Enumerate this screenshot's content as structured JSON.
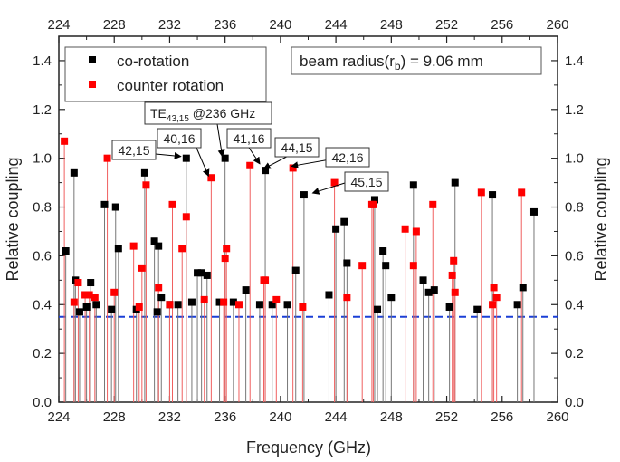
{
  "chart_data": {
    "type": "scatter",
    "xlabel": "Frequency (GHz)",
    "ylabel": "Relative coupling",
    "y2label": "Relative coupling",
    "xlim": [
      224,
      260
    ],
    "ylim": [
      0,
      1.5
    ],
    "xticks": [
      224,
      228,
      232,
      236,
      240,
      244,
      248,
      252,
      256,
      260
    ],
    "yticks": [
      0.0,
      0.2,
      0.4,
      0.6,
      0.8,
      1.0,
      1.2,
      1.4
    ],
    "ytick_labels": [
      "0.0",
      "0.2",
      "0.4",
      "0.6",
      "0.8",
      "1.0",
      "1.2",
      "1.4"
    ],
    "threshold": {
      "value": 0.35,
      "color": "#1a3fd6"
    },
    "legend": {
      "position": "top-left"
    },
    "beam_label": {
      "prefix": "beam radius(r",
      "subscript": "b",
      "suffix": ")  = 9.06 mm"
    },
    "series": [
      {
        "name": "co-rotation",
        "color": "#000000",
        "x": [
          224.5,
          225.1,
          225.2,
          225.5,
          226.0,
          226.3,
          226.7,
          227.3,
          227.8,
          228.1,
          228.3,
          229.6,
          230.2,
          230.9,
          231.1,
          231.2,
          231.4,
          232.0,
          232.6,
          233.2,
          233.6,
          234.0,
          234.3,
          234.7,
          235.6,
          236.0,
          236.6,
          237.5,
          238.5,
          238.9,
          239.4,
          240.5,
          241.1,
          241.7,
          243.5,
          244.0,
          244.6,
          244.8,
          246.8,
          247.0,
          247.4,
          247.6,
          248.0,
          249.6,
          250.3,
          250.7,
          251.1,
          252.2,
          252.6,
          254.2,
          255.3,
          257.1,
          257.5,
          258.3
        ],
        "y": [
          0.62,
          0.94,
          0.5,
          0.37,
          0.39,
          0.49,
          0.4,
          0.81,
          0.38,
          0.8,
          0.63,
          0.38,
          0.94,
          0.66,
          0.37,
          0.64,
          0.43,
          0.4,
          0.4,
          1.0,
          0.41,
          0.53,
          0.53,
          0.52,
          0.41,
          1.0,
          0.41,
          0.46,
          0.4,
          0.95,
          0.4,
          0.4,
          0.54,
          0.85,
          0.44,
          0.71,
          0.74,
          0.57,
          0.83,
          0.38,
          0.62,
          0.56,
          0.43,
          0.89,
          0.5,
          0.45,
          0.46,
          0.39,
          0.9,
          0.38,
          0.85,
          0.4,
          0.47,
          0.78
        ]
      },
      {
        "name": "counter rotation",
        "color": "#ff0000",
        "x": [
          224.4,
          225.1,
          225.4,
          225.9,
          226.2,
          226.6,
          227.5,
          228.0,
          229.4,
          229.8,
          230.0,
          230.3,
          231.2,
          232.0,
          232.2,
          232.9,
          233.2,
          234.5,
          235.0,
          235.9,
          236.0,
          236.1,
          237.0,
          237.8,
          238.8,
          238.9,
          239.7,
          240.9,
          241.6,
          243.9,
          244.8,
          245.9,
          246.6,
          246.7,
          249.0,
          249.6,
          249.8,
          251.0,
          252.4,
          252.5,
          252.6,
          254.5,
          255.3,
          255.4,
          255.6,
          257.4
        ],
        "y": [
          1.07,
          0.41,
          0.49,
          0.44,
          0.44,
          0.43,
          1.0,
          0.45,
          0.64,
          0.39,
          0.55,
          0.89,
          0.47,
          0.4,
          0.81,
          0.63,
          0.76,
          0.42,
          0.92,
          0.41,
          0.59,
          0.63,
          0.4,
          0.97,
          0.5,
          0.5,
          0.42,
          0.96,
          0.39,
          0.9,
          0.43,
          0.56,
          0.81,
          0.81,
          0.71,
          0.56,
          0.7,
          0.81,
          0.52,
          0.58,
          0.45,
          0.86,
          0.4,
          0.47,
          0.43,
          0.86
        ]
      }
    ],
    "annotations": [
      {
        "text": "42,15",
        "x": 233.0,
        "y": 1.0
      },
      {
        "text": "40,16",
        "x": 235.0,
        "y": 0.92
      },
      {
        "text_main": "TE",
        "text_sub": "43,15",
        "text_tail": " @236 GHz",
        "x": 236.0,
        "y": 1.0
      },
      {
        "text": "41,16",
        "x": 238.7,
        "y": 0.97
      },
      {
        "text": "44,15",
        "x": 239.0,
        "y": 0.95
      },
      {
        "text": "42,16",
        "x": 241.0,
        "y": 0.96
      },
      {
        "text": "45,15",
        "x": 242.0,
        "y": 0.85
      }
    ]
  }
}
